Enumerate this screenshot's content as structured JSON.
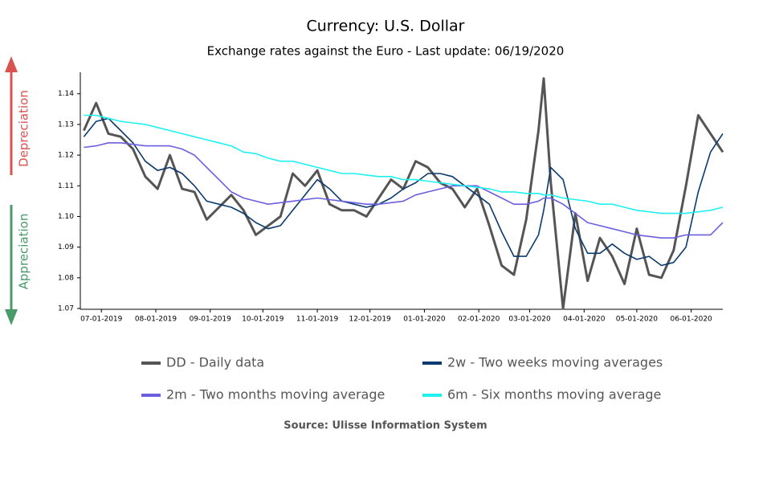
{
  "chart_data": {
    "type": "line",
    "title": "Currency: U.S. Dollar",
    "subtitle": "Exchange rates against the Euro - Last update: 06/19/2020",
    "annotations": {
      "up": "Depreciation",
      "down": "Appreciation"
    },
    "source": "Source: Ulisse Information System",
    "x": [
      "2019-06-21",
      "2019-06-28",
      "2019-07-05",
      "2019-07-12",
      "2019-07-19",
      "2019-07-26",
      "2019-08-02",
      "2019-08-09",
      "2019-08-16",
      "2019-08-23",
      "2019-08-30",
      "2019-09-06",
      "2019-09-13",
      "2019-09-20",
      "2019-09-27",
      "2019-10-04",
      "2019-10-11",
      "2019-10-18",
      "2019-10-25",
      "2019-11-01",
      "2019-11-08",
      "2019-11-15",
      "2019-11-22",
      "2019-11-29",
      "2019-12-06",
      "2019-12-13",
      "2019-12-20",
      "2019-12-27",
      "2020-01-03",
      "2020-01-10",
      "2020-01-17",
      "2020-01-24",
      "2020-01-31",
      "2020-02-07",
      "2020-02-14",
      "2020-02-21",
      "2020-02-28",
      "2020-03-06",
      "2020-03-09",
      "2020-03-13",
      "2020-03-20",
      "2020-03-27",
      "2020-04-03",
      "2020-04-10",
      "2020-04-17",
      "2020-04-24",
      "2020-05-01",
      "2020-05-08",
      "2020-05-15",
      "2020-05-22",
      "2020-05-29",
      "2020-06-05",
      "2020-06-12",
      "2020-06-19"
    ],
    "series": [
      {
        "name": "DD - Daily data",
        "color": "#555555",
        "width": 3,
        "values": [
          1.128,
          1.137,
          1.127,
          1.126,
          1.122,
          1.113,
          1.109,
          1.12,
          1.109,
          1.108,
          1.099,
          1.103,
          1.107,
          1.102,
          1.094,
          1.097,
          1.1,
          1.114,
          1.11,
          1.115,
          1.104,
          1.102,
          1.102,
          1.1,
          1.106,
          1.112,
          1.109,
          1.118,
          1.116,
          1.111,
          1.109,
          1.103,
          1.109,
          1.097,
          1.084,
          1.081,
          1.099,
          1.128,
          1.145,
          1.111,
          1.07,
          1.101,
          1.079,
          1.093,
          1.087,
          1.078,
          1.096,
          1.081,
          1.08,
          1.089,
          1.11,
          1.133,
          1.127,
          1.121
        ]
      },
      {
        "name": "2w - Two weeks moving averages",
        "color": "#0a3a6e",
        "width": 1.6,
        "values": [
          1.126,
          1.131,
          1.132,
          1.128,
          1.124,
          1.118,
          1.115,
          1.116,
          1.114,
          1.11,
          1.105,
          1.104,
          1.103,
          1.101,
          1.098,
          1.096,
          1.097,
          1.102,
          1.107,
          1.112,
          1.109,
          1.105,
          1.104,
          1.103,
          1.104,
          1.106,
          1.109,
          1.111,
          1.114,
          1.114,
          1.113,
          1.11,
          1.107,
          1.104,
          1.095,
          1.087,
          1.087,
          1.094,
          1.102,
          1.116,
          1.112,
          1.096,
          1.088,
          1.088,
          1.091,
          1.088,
          1.086,
          1.087,
          1.084,
          1.085,
          1.09,
          1.108,
          1.121,
          1.127
        ]
      },
      {
        "name": "2m - Two months moving average",
        "color": "#6a5fe0",
        "width": 1.6,
        "values": [
          1.1225,
          1.123,
          1.124,
          1.124,
          1.1235,
          1.123,
          1.123,
          1.123,
          1.122,
          1.12,
          1.116,
          1.112,
          1.108,
          1.106,
          1.105,
          1.104,
          1.1045,
          1.105,
          1.1055,
          1.106,
          1.1055,
          1.105,
          1.1045,
          1.104,
          1.104,
          1.1045,
          1.105,
          1.107,
          1.108,
          1.109,
          1.11,
          1.11,
          1.11,
          1.108,
          1.106,
          1.104,
          1.104,
          1.105,
          1.106,
          1.106,
          1.104,
          1.101,
          1.098,
          1.097,
          1.096,
          1.095,
          1.094,
          1.0935,
          1.093,
          1.093,
          1.094,
          1.094,
          1.094,
          1.098
        ]
      },
      {
        "name": "6m - Six months moving average",
        "color": "#1ff0f0",
        "width": 1.6,
        "values": [
          1.133,
          1.133,
          1.132,
          1.131,
          1.1305,
          1.13,
          1.129,
          1.128,
          1.127,
          1.126,
          1.125,
          1.124,
          1.123,
          1.121,
          1.1205,
          1.119,
          1.118,
          1.118,
          1.117,
          1.116,
          1.115,
          1.114,
          1.114,
          1.1135,
          1.113,
          1.113,
          1.112,
          1.112,
          1.1115,
          1.111,
          1.1105,
          1.11,
          1.1095,
          1.109,
          1.108,
          1.108,
          1.1075,
          1.1075,
          1.107,
          1.107,
          1.106,
          1.1055,
          1.105,
          1.104,
          1.104,
          1.103,
          1.102,
          1.1015,
          1.101,
          1.101,
          1.101,
          1.1015,
          1.102,
          1.103
        ]
      }
    ],
    "xlim": [
      "2019-06-19",
      "2020-06-19"
    ],
    "xticks": [
      {
        "value": "2019-07-01",
        "label": "07-01-2019"
      },
      {
        "value": "2019-08-01",
        "label": "08-01-2019"
      },
      {
        "value": "2019-09-01",
        "label": "09-01-2019"
      },
      {
        "value": "2019-10-01",
        "label": "10-01-2019"
      },
      {
        "value": "2019-11-01",
        "label": "11-01-2019"
      },
      {
        "value": "2019-12-01",
        "label": "12-01-2019"
      },
      {
        "value": "2020-01-01",
        "label": "01-01-2020"
      },
      {
        "value": "2020-02-01",
        "label": "02-01-2020"
      },
      {
        "value": "2020-03-01",
        "label": "03-01-2020"
      },
      {
        "value": "2020-04-01",
        "label": "04-01-2020"
      },
      {
        "value": "2020-05-01",
        "label": "05-01-2020"
      },
      {
        "value": "2020-06-01",
        "label": "06-01-2020"
      }
    ],
    "ylim": [
      1.07,
      1.147
    ],
    "yticks": [
      1.07,
      1.08,
      1.09,
      {
        "value": 1.1,
        "label": "1.10"
      },
      1.11,
      1.12,
      1.13,
      1.14
    ],
    "grid": false
  }
}
